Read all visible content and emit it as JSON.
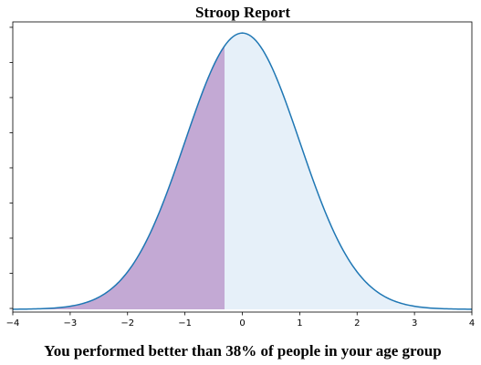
{
  "chart_data": {
    "type": "area",
    "title": "Stroop Report",
    "xlabel": "You performed better than 38% of people in your age group",
    "ylabel": "",
    "xlim": [
      -4,
      4
    ],
    "ylim": [
      -0.004,
      0.415
    ],
    "x_ticks": [
      -4,
      -3,
      -2,
      -1,
      0,
      1,
      2,
      3,
      4
    ],
    "x_tick_labels": [
      "−4",
      "−3",
      "−2",
      "−1",
      "0",
      "1",
      "2",
      "3",
      "4"
    ],
    "y_tick_count": 9,
    "y_tick_labels_visible": false,
    "grid": false,
    "series": [
      {
        "curve": "normal-density",
        "mean": 0,
        "sd": 1,
        "color": "#1f77b4",
        "full_fill": "#e6f0f9",
        "shaded_until_x": -0.31,
        "shaded_fill": "#c3a9d4"
      }
    ]
  }
}
